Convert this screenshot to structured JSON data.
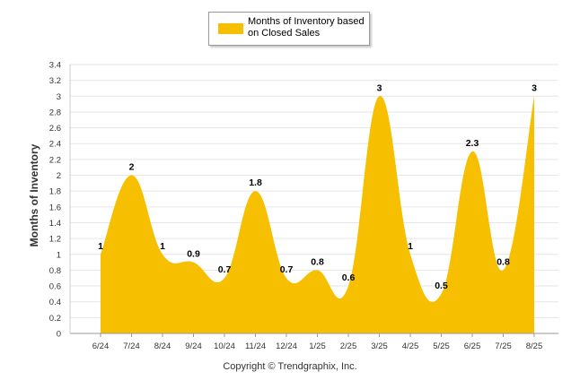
{
  "legend": {
    "label": "Months of Inventory based on Closed Sales"
  },
  "copyright": "Copyright © Trendgraphix, Inc.",
  "colors": {
    "series": "#f6c000",
    "grid": "#e6e6e6",
    "axis": "#999999"
  },
  "chart_data": {
    "type": "area",
    "ylabel": "Months of Inventory",
    "xlabel": "",
    "ylim": [
      0,
      3.4
    ],
    "yticks": [
      0,
      0.2,
      0.4,
      0.6,
      0.8,
      1,
      1.2,
      1.4,
      1.6,
      1.8,
      2,
      2.2,
      2.4,
      2.6,
      2.8,
      3,
      3.2,
      3.4
    ],
    "ytick_labels": [
      "0",
      "0.2",
      "0.4",
      "0.6",
      "0.8",
      "1",
      "1.2",
      "1.4",
      "1.6",
      "1.8",
      "2",
      "2.2",
      "2.4",
      "2.6",
      "2.8",
      "3",
      "3.2",
      "3.4"
    ],
    "categories": [
      "6/24",
      "7/24",
      "8/24",
      "9/24",
      "10/24",
      "11/24",
      "12/24",
      "1/25",
      "2/25",
      "3/25",
      "4/25",
      "5/25",
      "6/25",
      "7/25",
      "8/25"
    ],
    "series": [
      {
        "name": "Months of Inventory based on Closed Sales",
        "values": [
          1,
          2,
          1,
          0.9,
          0.7,
          1.8,
          0.7,
          0.8,
          0.6,
          3,
          1,
          0.5,
          2.3,
          0.8,
          3
        ],
        "labels": [
          "1",
          "2",
          "1",
          "0.9",
          "0.7",
          "1.8",
          "0.7",
          "0.8",
          "0.6",
          "3",
          "1",
          "0.5",
          "2.3",
          "0.8",
          "3"
        ]
      }
    ],
    "grid": true,
    "legend_position": "top-center"
  }
}
